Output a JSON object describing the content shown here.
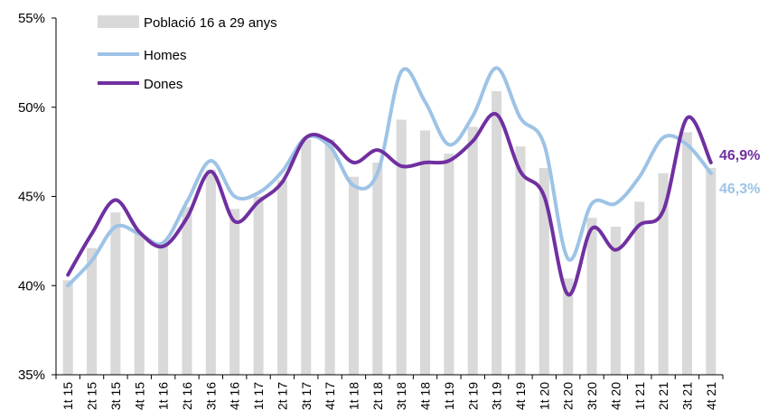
{
  "chart_data": {
    "type": "bar",
    "categories": [
      "1t 15",
      "2t 15",
      "3t 15",
      "4t 15",
      "1t 16",
      "2t 16",
      "3t 16",
      "4t 16",
      "1t 17",
      "2t 17",
      "3t 17",
      "4t 17",
      "1t 18",
      "2t 18",
      "3t 18",
      "4t 18",
      "1t 19",
      "2t 19",
      "3t 19",
      "4t 19",
      "1t 20",
      "2t 20",
      "3t 20",
      "4t 20",
      "1t 21",
      "2t 21",
      "3t 21",
      "4t 21"
    ],
    "ylim": [
      35,
      55
    ],
    "yticks": [
      35,
      40,
      45,
      50,
      55
    ],
    "ytick_labels": [
      "35%",
      "40%",
      "45%",
      "50%",
      "55%"
    ],
    "series": [
      {
        "name": "Població 16 a 29 anys",
        "kind": "bar",
        "color": "#d9d9d9",
        "values": [
          40.3,
          42.1,
          44.1,
          42.9,
          42.3,
          44.4,
          46.5,
          44.3,
          45.0,
          45.9,
          48.2,
          48.2,
          46.1,
          46.9,
          49.3,
          48.7,
          47.4,
          48.9,
          50.9,
          47.8,
          46.6,
          40.4,
          43.8,
          43.3,
          44.7,
          46.3,
          48.6,
          46.6
        ]
      },
      {
        "name": "Homes",
        "kind": "line",
        "color": "#9dc3e6",
        "values": [
          40.0,
          41.4,
          43.3,
          42.9,
          42.4,
          44.7,
          47.0,
          45.0,
          45.2,
          46.4,
          48.3,
          47.8,
          45.6,
          46.3,
          52.0,
          50.3,
          47.9,
          49.5,
          52.2,
          49.4,
          47.9,
          41.5,
          44.6,
          44.6,
          46.1,
          48.3,
          47.9,
          46.3
        ]
      },
      {
        "name": "Dones",
        "kind": "line",
        "color": "#7030a0",
        "values": [
          40.6,
          42.9,
          44.8,
          43.0,
          42.2,
          43.8,
          46.4,
          43.6,
          44.7,
          45.8,
          48.3,
          48.1,
          46.9,
          47.6,
          46.7,
          46.9,
          47.0,
          48.1,
          49.6,
          46.4,
          45.0,
          39.5,
          43.2,
          42.0,
          43.4,
          44.2,
          49.4,
          46.9
        ]
      }
    ],
    "end_labels": [
      {
        "series": "Dones",
        "text": "46,9%",
        "color": "#7030a0"
      },
      {
        "series": "Homes",
        "text": "46,3%",
        "color": "#9dc3e6"
      }
    ],
    "legend": [
      "Població 16 a 29 anys",
      "Homes",
      "Dones"
    ],
    "legend_position": "top-left",
    "grid": false
  }
}
